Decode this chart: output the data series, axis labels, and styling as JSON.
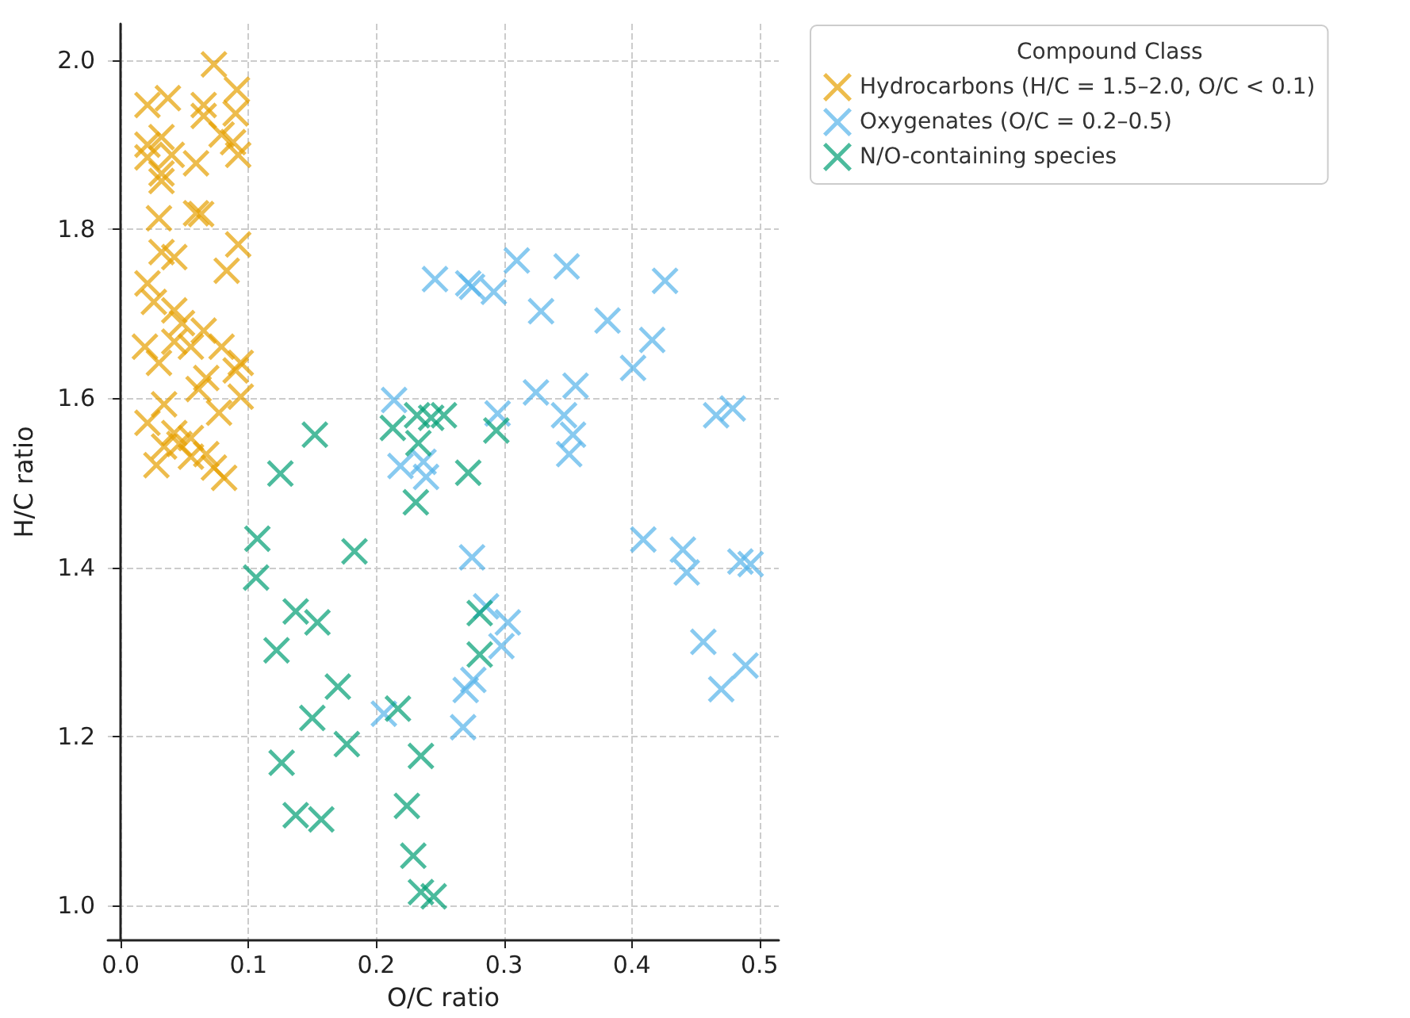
{
  "chart_data": {
    "type": "scatter",
    "xlabel": "O/C ratio",
    "ylabel": "H/C ratio",
    "legend_title": "Compound Class",
    "legend": "top right",
    "grid": true,
    "marker": "cross",
    "xlim": [
      -0.01,
      0.515
    ],
    "ylim": [
      0.959,
      2.043
    ],
    "xticks": [
      {
        "value": 0,
        "label": "0.0"
      },
      0.1,
      0.2,
      0.3,
      0.4,
      0.5
    ],
    "yticks": [
      {
        "value": 1,
        "label": "1.0"
      },
      1.2,
      1.4,
      1.6,
      1.8,
      {
        "value": 2,
        "label": "2.0"
      }
    ],
    "series": [
      {
        "name": "Hydrocarbons (H/C = 1.5–2.0, O/C < 0.1)",
        "color": "#e69f00",
        "x": [
          0.073,
          0.021,
          0.037,
          0.065,
          0.091,
          0.065,
          0.09,
          0.079,
          0.021,
          0.032,
          0.088,
          0.092,
          0.021,
          0.04,
          0.059,
          0.032,
          0.032,
          0.03,
          0.059,
          0.063,
          0.032,
          0.042,
          0.092,
          0.083,
          0.021,
          0.026,
          0.042,
          0.048,
          0.042,
          0.065,
          0.019,
          0.055,
          0.079,
          0.03,
          0.094,
          0.09,
          0.067,
          0.061,
          0.094,
          0.034,
          0.077,
          0.021,
          0.042,
          0.055,
          0.034,
          0.046,
          0.063,
          0.067,
          0.028,
          0.055,
          0.073,
          0.081
        ],
        "values": [
          1.995,
          1.947,
          1.955,
          1.947,
          1.965,
          1.934,
          1.937,
          1.912,
          1.9,
          1.909,
          1.903,
          1.888,
          1.885,
          1.888,
          1.878,
          1.866,
          1.857,
          1.813,
          1.819,
          1.818,
          1.773,
          1.767,
          1.782,
          1.751,
          1.736,
          1.714,
          1.704,
          1.689,
          1.667,
          1.68,
          1.661,
          1.661,
          1.661,
          1.642,
          1.642,
          1.633,
          1.624,
          1.611,
          1.602,
          1.593,
          1.583,
          1.571,
          1.559,
          1.553,
          1.543,
          1.546,
          null,
          1.534,
          1.521,
          1.531,
          1.518,
          1.506
        ]
      },
      {
        "name": "Oxygenates (O/C = 0.2–0.5)",
        "color": "#56b4e9",
        "x": [
          0.246,
          0.272,
          0.275,
          0.292,
          0.31,
          0.214,
          0.295,
          0.219,
          0.237,
          0.239,
          0.275,
          0.286,
          0.303,
          0.298,
          0.276,
          0.27,
          0.268,
          0.206,
          0.349,
          0.426,
          0.329,
          0.381,
          0.416,
          0.401,
          0.325,
          0.356,
          0.347,
          0.354,
          0.351,
          0.466,
          0.479,
          0.409,
          0.44,
          0.443,
          0.485,
          0.493,
          0.456,
          0.489,
          0.47
        ],
        "values": [
          1.741,
          1.736,
          1.732,
          1.726,
          1.763,
          1.598,
          1.582,
          1.52,
          1.525,
          1.507,
          1.412,
          1.354,
          1.335,
          1.307,
          1.267,
          1.255,
          1.211,
          1.227,
          1.756,
          1.739,
          1.703,
          1.692,
          1.669,
          1.636,
          1.607,
          1.615,
          1.58,
          1.557,
          1.534,
          1.58,
          1.588,
          1.433,
          1.421,
          1.394,
          1.407,
          1.404,
          1.312,
          1.284,
          1.256
        ]
      },
      {
        "name": "N/O-containing species",
        "color": "#009e73",
        "x": [
          0.152,
          0.125,
          0.107,
          0.106,
          0.183,
          0.137,
          0.154,
          0.122,
          0.17,
          0.15,
          0.177,
          0.126,
          0.137,
          0.157,
          0.217,
          0.235,
          0.224,
          0.229,
          0.235,
          0.245,
          0.213,
          0.232,
          0.243,
          0.253,
          0.233,
          0.231,
          0.272,
          0.294,
          0.281,
          0.281
        ],
        "values": [
          1.557,
          1.511,
          1.434,
          1.388,
          1.419,
          1.348,
          1.335,
          1.302,
          1.259,
          1.222,
          1.191,
          1.169,
          1.107,
          1.102,
          1.233,
          1.177,
          1.118,
          1.059,
          1.016,
          1.011,
          1.565,
          1.58,
          1.577,
          1.58,
          1.547,
          1.477,
          1.512,
          1.562,
          1.346,
          1.297
        ]
      }
    ]
  }
}
